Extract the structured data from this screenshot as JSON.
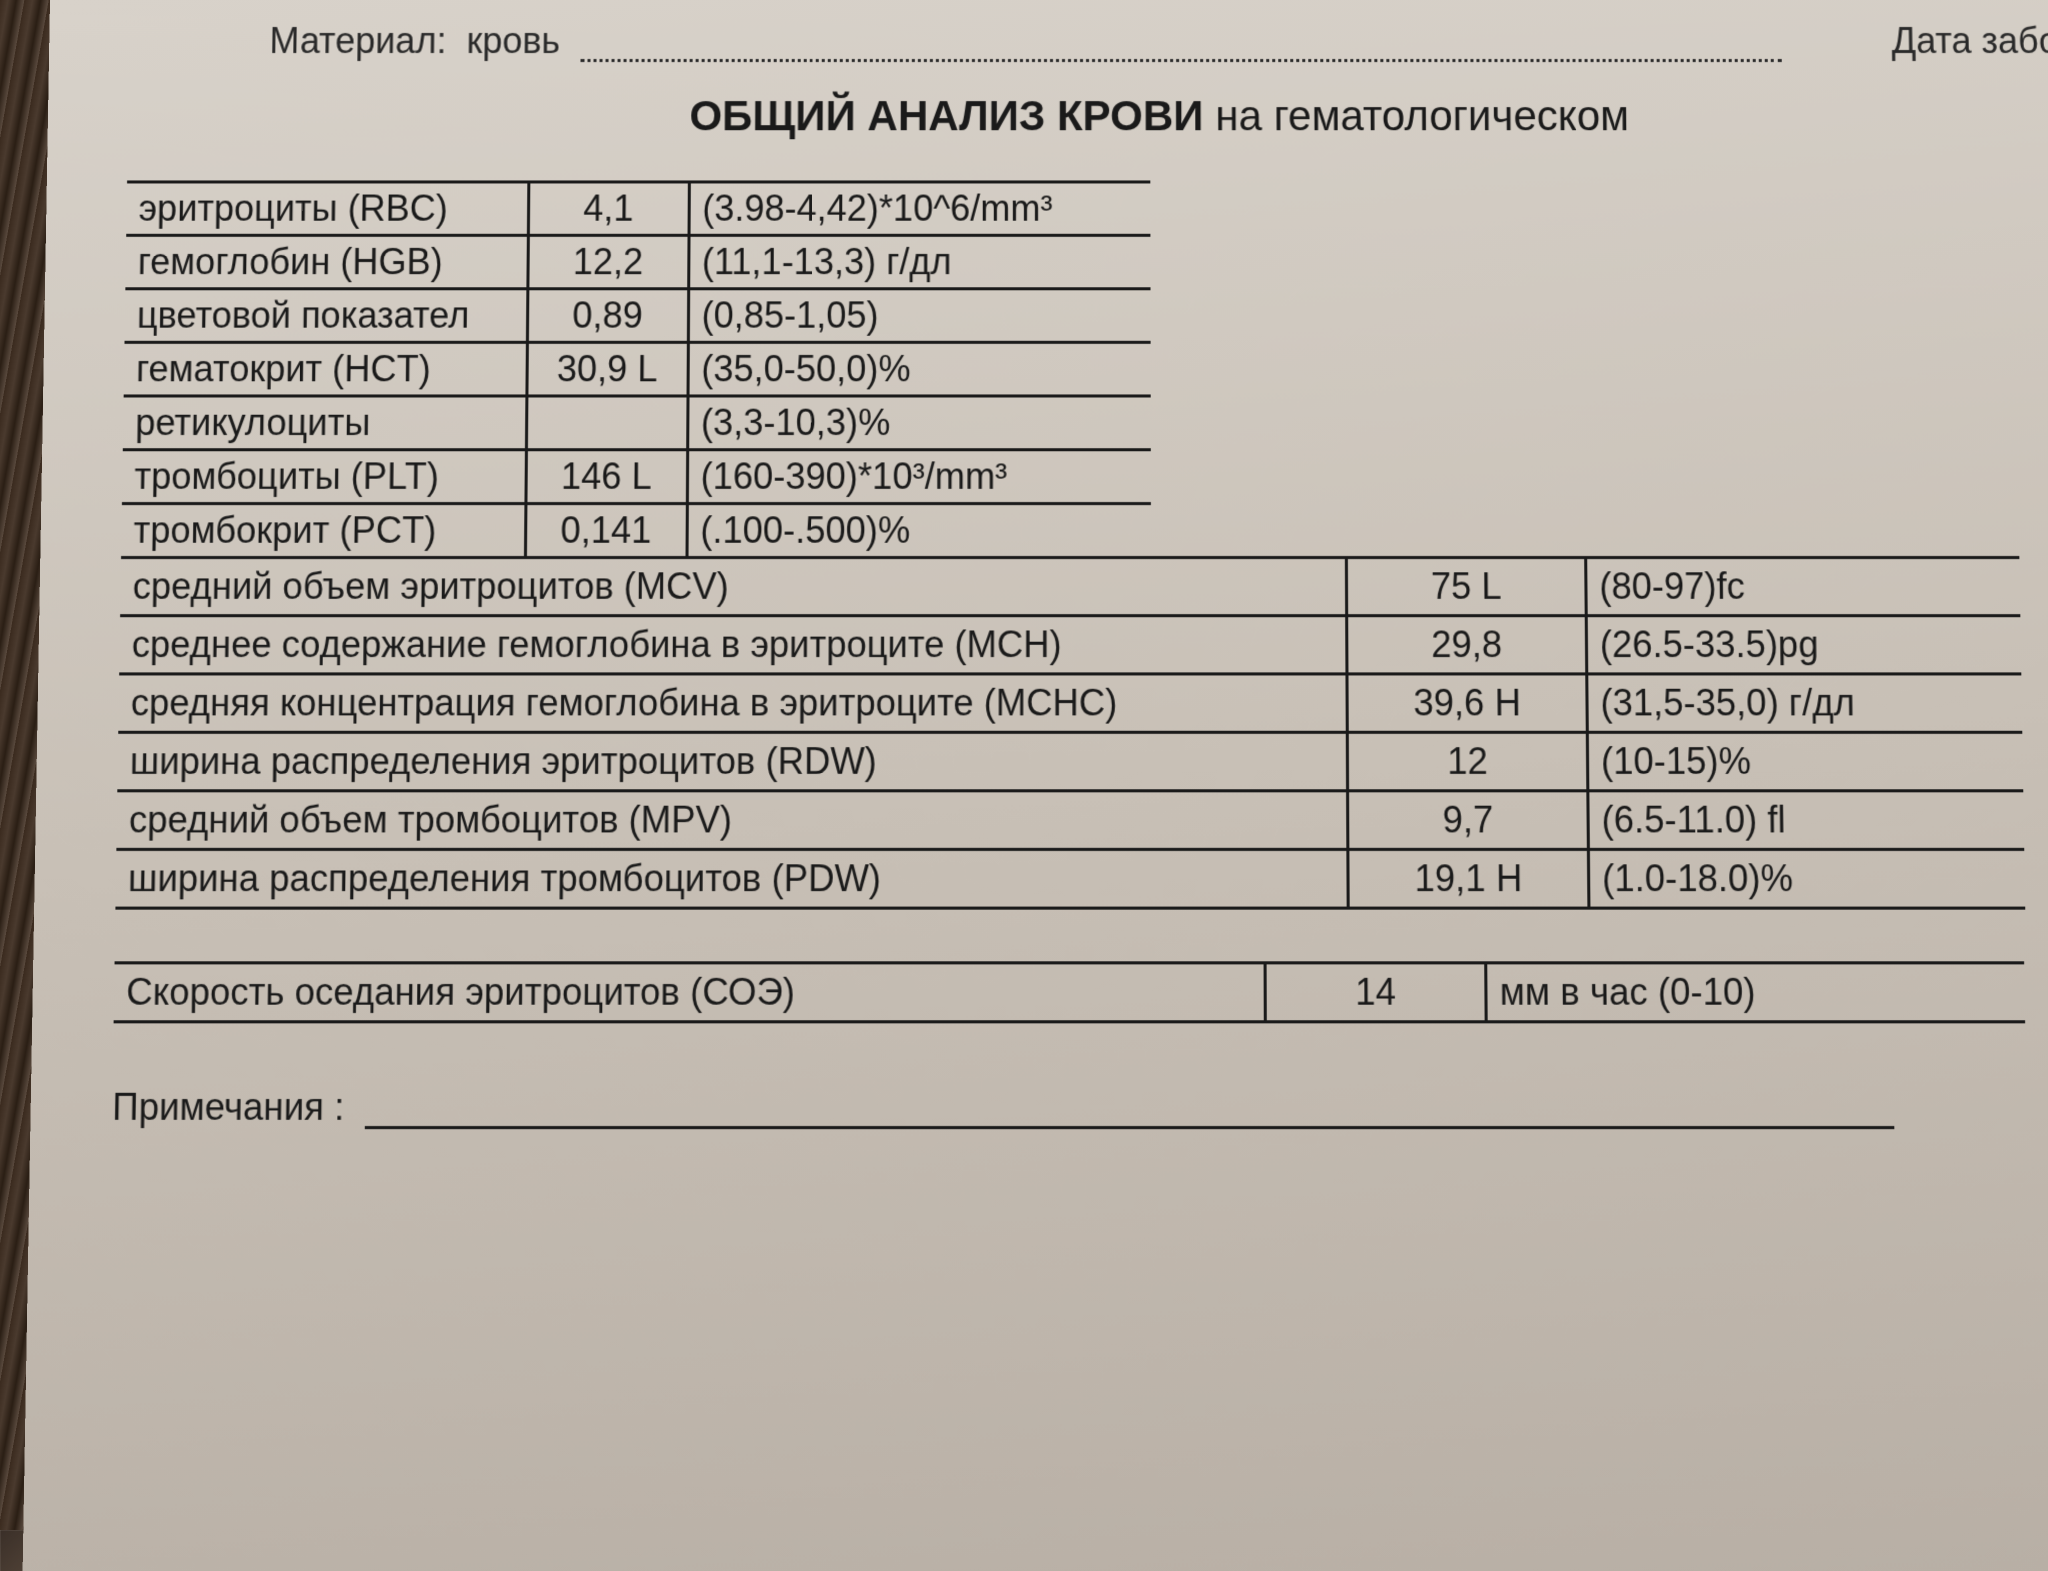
{
  "header": {
    "material_label": "Материал:",
    "material_value": "кровь",
    "date_label": "Дата забо"
  },
  "title": {
    "bold": "ОБЩИЙ АНАЛИЗ КРОВИ",
    "rest": "на гематологическом"
  },
  "table1": {
    "rows": [
      {
        "name": "эритроциты (RBC)",
        "value": "4,1",
        "range": "(3.98-4,42)*10^6/mm³"
      },
      {
        "name": "гемоглобин (HGB)",
        "value": "12,2",
        "range": "(11,1-13,3) г/дл"
      },
      {
        "name": "цветовой показател",
        "value": "0,89",
        "range": "(0,85-1,05)"
      },
      {
        "name": "гематокрит (HCT)",
        "value": "30,9 L",
        "range": "(35,0-50,0)%"
      },
      {
        "name": "ретикулоциты",
        "value": "",
        "range": "(3,3-10,3)%"
      },
      {
        "name": "тромбоциты (PLT)",
        "value": "146 L",
        "range": "(160-390)*10³/mm³"
      },
      {
        "name": "тромбокрит (PCT)",
        "value": "0,141",
        "range": "(.100-.500)%"
      }
    ]
  },
  "table2": {
    "rows": [
      {
        "name": "средний объем эритроцитов (MCV)",
        "value": "75 L",
        "range": "(80-97)fc"
      },
      {
        "name": "среднее содержание гемоглобина в эритроците (MCH)",
        "value": "29,8",
        "range": "(26.5-33.5)pg"
      },
      {
        "name": "средняя концентрация гемоглобина в эритроците (MCHC)",
        "value": "39,6 H",
        "range": "(31,5-35,0) г/дл"
      },
      {
        "name": "ширина распределения эритроцитов (RDW)",
        "value": "12",
        "range": "(10-15)%"
      },
      {
        "name": "средний объем тромбоцитов (MPV)",
        "value": "9,7",
        "range": "(6.5-11.0) fl"
      },
      {
        "name": "ширина распределения тромбоцитов (PDW)",
        "value": "19,1 H",
        "range": "(1.0-18.0)%"
      }
    ]
  },
  "soe": {
    "label": "Скорость оседания эритроцитов (СОЭ)",
    "value": "14",
    "unit": "мм в час (0-10)"
  },
  "notes": {
    "label": "Примечания :"
  },
  "style": {
    "font_family": "Arial",
    "body_fontsize": 36,
    "title_fontsize": 42,
    "text_color": "#1a1a1a",
    "border_color": "#1a1a1a",
    "border_width": 3,
    "paper_bg_top": "#d8d2ca",
    "paper_bg_bottom": "#b8afa5",
    "table1_col_widths": [
      400,
      160,
      460
    ],
    "table2_col_widths": [
      1130,
      220,
      400
    ]
  }
}
